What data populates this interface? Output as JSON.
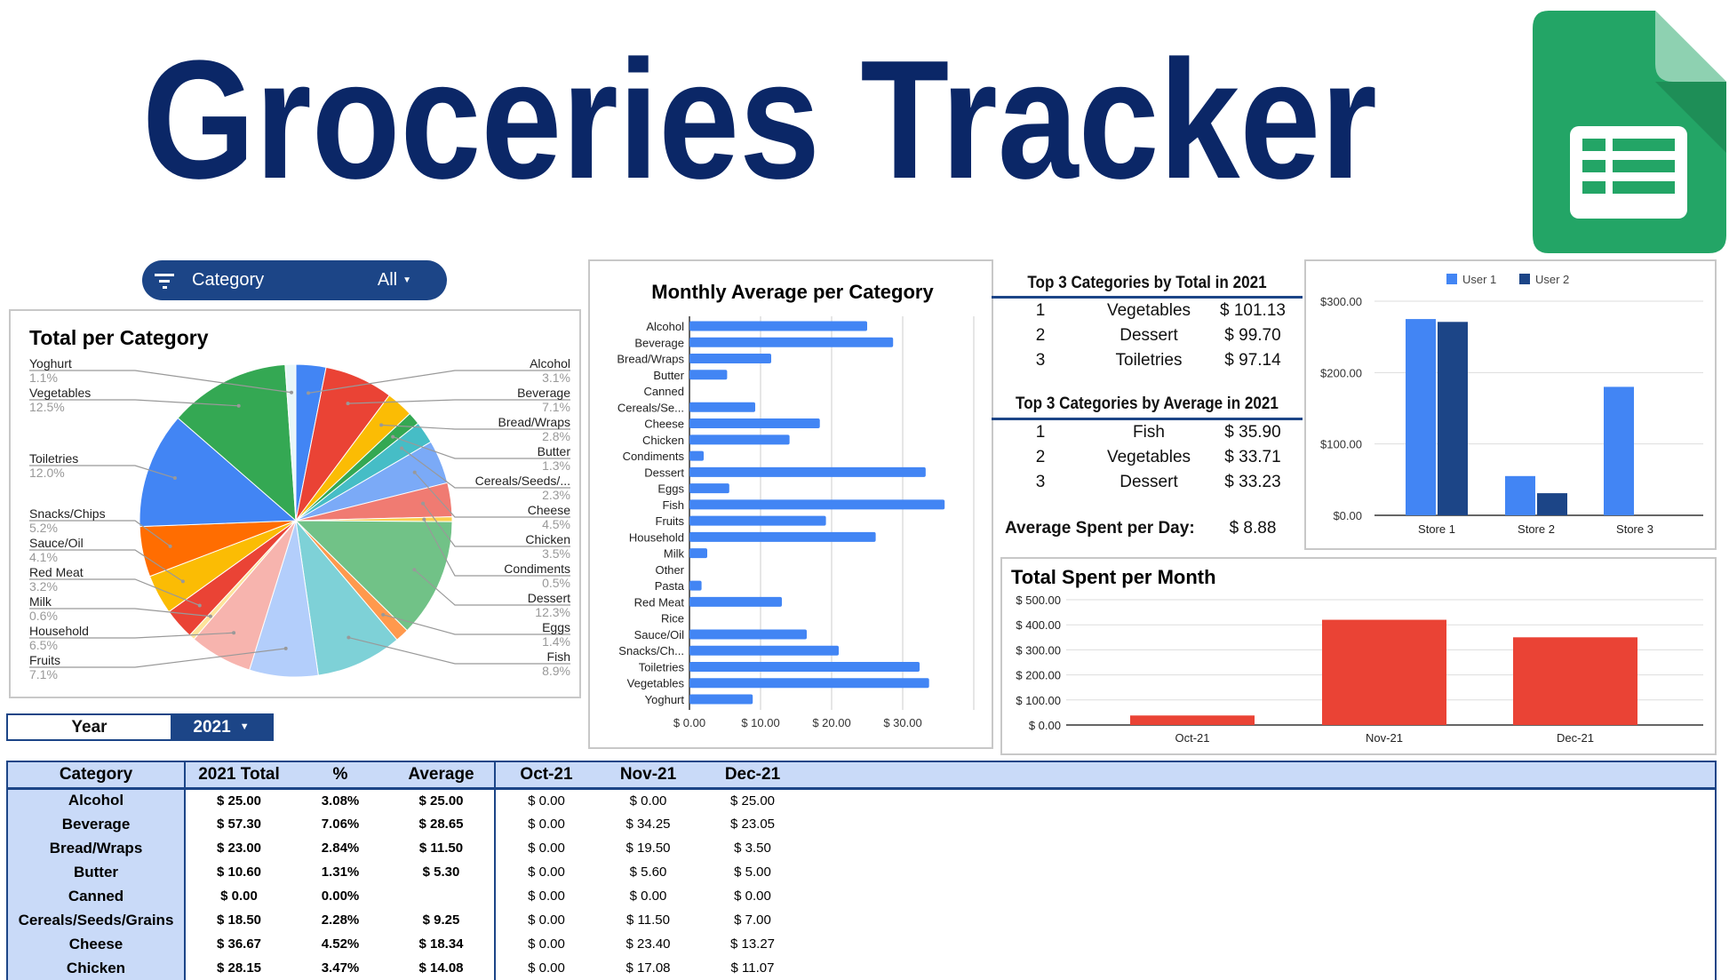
{
  "title": "Groceries Tracker",
  "logo": "google-sheets-logo",
  "filter": {
    "label": "Category",
    "value": "All",
    "icon": "filter-icon"
  },
  "year_selector": {
    "label": "Year",
    "value": "2021"
  },
  "top_total": {
    "title": "Top 3 Categories by Total in 2021",
    "rows": [
      [
        "1",
        "Vegetables",
        "$ 101.13"
      ],
      [
        "2",
        "Dessert",
        "$ 99.70"
      ],
      [
        "3",
        "Toiletries",
        "$ 97.14"
      ]
    ]
  },
  "top_average": {
    "title": "Top 3 Categories by Average in 2021",
    "rows": [
      [
        "1",
        "Fish",
        "$ 35.90"
      ],
      [
        "2",
        "Vegetables",
        "$ 33.71"
      ],
      [
        "3",
        "Dessert",
        "$ 33.23"
      ]
    ]
  },
  "avg_per_day": {
    "label": "Average Spent per Day:",
    "value": "$ 8.88"
  },
  "colors": {
    "title": "#0b2767",
    "accent": "#1c4587",
    "bar_blue": "#4285f4",
    "user2": "#1c4587",
    "month_red": "#ea4335",
    "header_bg": "#c9daf8"
  },
  "chart_data": [
    {
      "type": "pie",
      "title": "Total per Category",
      "categories": [
        "Alcohol",
        "Beverage",
        "Bread/Wraps",
        "Butter",
        "Cereals/Seeds/...",
        "Cheese",
        "Chicken",
        "Condiments",
        "Dessert",
        "Eggs",
        "Fish",
        "Fruits",
        "Household",
        "Milk",
        "Red Meat",
        "Sauce/Oil",
        "Snacks/Chips",
        "Toiletries",
        "Vegetables",
        "Yoghurt"
      ],
      "values": [
        3.1,
        7.1,
        2.8,
        1.3,
        2.3,
        4.5,
        3.5,
        0.5,
        12.3,
        1.4,
        8.9,
        7.1,
        6.5,
        0.6,
        3.2,
        4.1,
        5.2,
        12.0,
        12.5,
        1.1
      ],
      "labels": [
        "3.1%",
        "7.1%",
        "2.8%",
        "1.3%",
        "2.3%",
        "4.5%",
        "3.5%",
        "0.5%",
        "12.3%",
        "1.4%",
        "8.9%",
        "7.1%",
        "6.5%",
        "0.6%",
        "3.2%",
        "4.1%",
        "5.2%",
        "12.0%",
        "12.5%",
        "1.1%"
      ],
      "colors": [
        "#4285f4",
        "#ea4335",
        "#fbbc04",
        "#34a853",
        "#46bdc6",
        "#7baaf7",
        "#f07b72",
        "#fcd04f",
        "#71c287",
        "#ff994d",
        "#7ed1d7",
        "#b3cefb",
        "#f7b4ae",
        "#fde49b",
        "#ea4335",
        "#fbbc04",
        "#ff6d01",
        "#4285f4",
        "#34a853",
        "#e8f6f8"
      ]
    },
    {
      "type": "bar",
      "orientation": "horizontal",
      "title": "Monthly Average per Category",
      "categories": [
        "Alcohol",
        "Beverage",
        "Bread/Wraps",
        "Butter",
        "Canned",
        "Cereals/Se...",
        "Cheese",
        "Chicken",
        "Condiments",
        "Dessert",
        "Eggs",
        "Fish",
        "Fruits",
        "Household",
        "Milk",
        "Other",
        "Pasta",
        "Red Meat",
        "Rice",
        "Sauce/Oil",
        "Snacks/Ch...",
        "Toiletries",
        "Vegetables",
        "Yoghurt"
      ],
      "values": [
        25.0,
        28.65,
        11.5,
        5.3,
        0,
        9.25,
        18.34,
        14.08,
        2.0,
        33.23,
        5.6,
        35.9,
        19.2,
        26.2,
        2.5,
        0,
        1.7,
        13.0,
        0,
        16.5,
        21.0,
        32.38,
        33.71,
        8.9
      ],
      "xlim": [
        0,
        40
      ],
      "xticks": [
        "$ 0.00",
        "$ 10.00",
        "$ 20.00",
        "$ 30.00"
      ],
      "grid": true
    },
    {
      "type": "bar",
      "categories": [
        "Store 1",
        "Store 2",
        "Store 3"
      ],
      "series": [
        {
          "name": "User 1",
          "values": [
            275,
            55,
            180
          ]
        },
        {
          "name": "User 2",
          "values": [
            271,
            31,
            0
          ]
        }
      ],
      "ylim": [
        0,
        300
      ],
      "yticks": [
        "$0.00",
        "$100.00",
        "$200.00",
        "$300.00"
      ],
      "legend": "top",
      "grid": true
    },
    {
      "type": "bar",
      "title": "Total Spent per Month",
      "categories": [
        "Oct-21",
        "Nov-21",
        "Dec-21"
      ],
      "values": [
        38,
        420,
        350
      ],
      "ylim": [
        0,
        500
      ],
      "yticks": [
        "$ 0.00",
        "$ 100.00",
        "$ 200.00",
        "$ 300.00",
        "$ 400.00",
        "$ 500.00"
      ],
      "grid": true
    }
  ],
  "table": {
    "headers": [
      "Category",
      "2021 Total",
      "%",
      "Average",
      "Oct-21",
      "Nov-21",
      "Dec-21"
    ],
    "rows": [
      [
        "Alcohol",
        "$ 25.00",
        "3.08%",
        "$ 25.00",
        "$ 0.00",
        "$ 0.00",
        "$ 25.00"
      ],
      [
        "Beverage",
        "$ 57.30",
        "7.06%",
        "$ 28.65",
        "$ 0.00",
        "$ 34.25",
        "$ 23.05"
      ],
      [
        "Bread/Wraps",
        "$ 23.00",
        "2.84%",
        "$ 11.50",
        "$ 0.00",
        "$ 19.50",
        "$ 3.50"
      ],
      [
        "Butter",
        "$ 10.60",
        "1.31%",
        "$ 5.30",
        "$ 0.00",
        "$ 5.60",
        "$ 5.00"
      ],
      [
        "Canned",
        "$ 0.00",
        "0.00%",
        "",
        "$ 0.00",
        "$ 0.00",
        "$ 0.00"
      ],
      [
        "Cereals/Seeds/Grains",
        "$ 18.50",
        "2.28%",
        "$ 9.25",
        "$ 0.00",
        "$ 11.50",
        "$ 7.00"
      ],
      [
        "Cheese",
        "$ 36.67",
        "4.52%",
        "$ 18.34",
        "$ 0.00",
        "$ 23.40",
        "$ 13.27"
      ],
      [
        "Chicken",
        "$ 28.15",
        "3.47%",
        "$ 14.08",
        "$ 0.00",
        "$ 17.08",
        "$ 11.07"
      ]
    ]
  }
}
